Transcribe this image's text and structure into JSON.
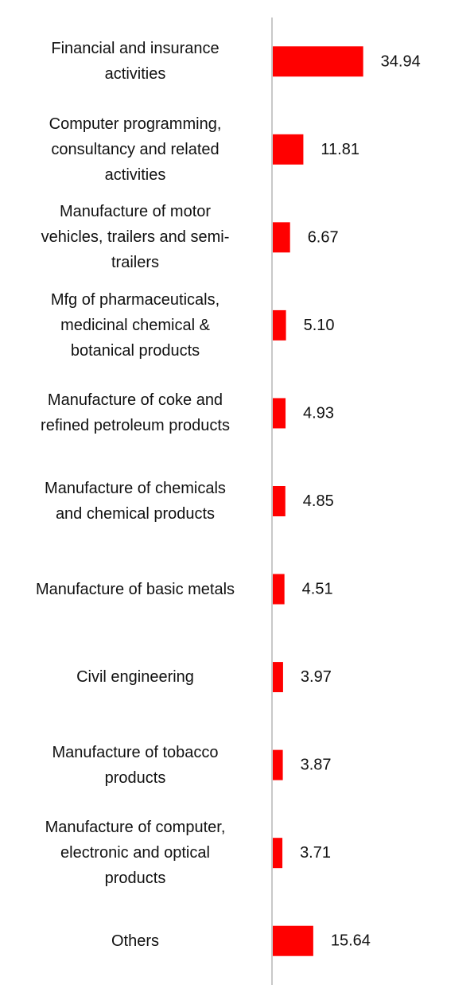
{
  "chart_data": {
    "type": "bar",
    "orientation": "horizontal",
    "categories": [
      [
        "Financial and insurance",
        "activities"
      ],
      [
        "Computer programming,",
        "consultancy and related",
        "activities"
      ],
      [
        "Manufacture of motor",
        "vehicles, trailers and semi-",
        "trailers"
      ],
      [
        "Mfg of pharmaceuticals,",
        "medicinal chemical &",
        "botanical products"
      ],
      [
        "Manufacture of coke and",
        "refined petroleum products"
      ],
      [
        "Manufacture of chemicals",
        "and chemical products"
      ],
      [
        "Manufacture of basic metals"
      ],
      [
        "Civil engineering"
      ],
      [
        "Manufacture of tobacco",
        "products"
      ],
      [
        "Manufacture of computer,",
        "electronic and optical",
        "products"
      ],
      [
        "Others"
      ]
    ],
    "values": [
      34.94,
      11.81,
      6.67,
      5.1,
      4.93,
      4.85,
      4.51,
      3.97,
      3.87,
      3.71,
      15.64
    ],
    "value_labels": [
      "34.94",
      "11.81",
      "6.67",
      "5.10",
      "4.93",
      "4.85",
      "4.51",
      "3.97",
      "3.87",
      "3.71",
      "15.64"
    ],
    "title": "",
    "xlabel": "",
    "ylabel": "",
    "xlim": [
      0,
      75
    ],
    "grid": false,
    "legend": "none",
    "bar_color": "#ff0000",
    "axis_color": "#c8c8c8"
  }
}
